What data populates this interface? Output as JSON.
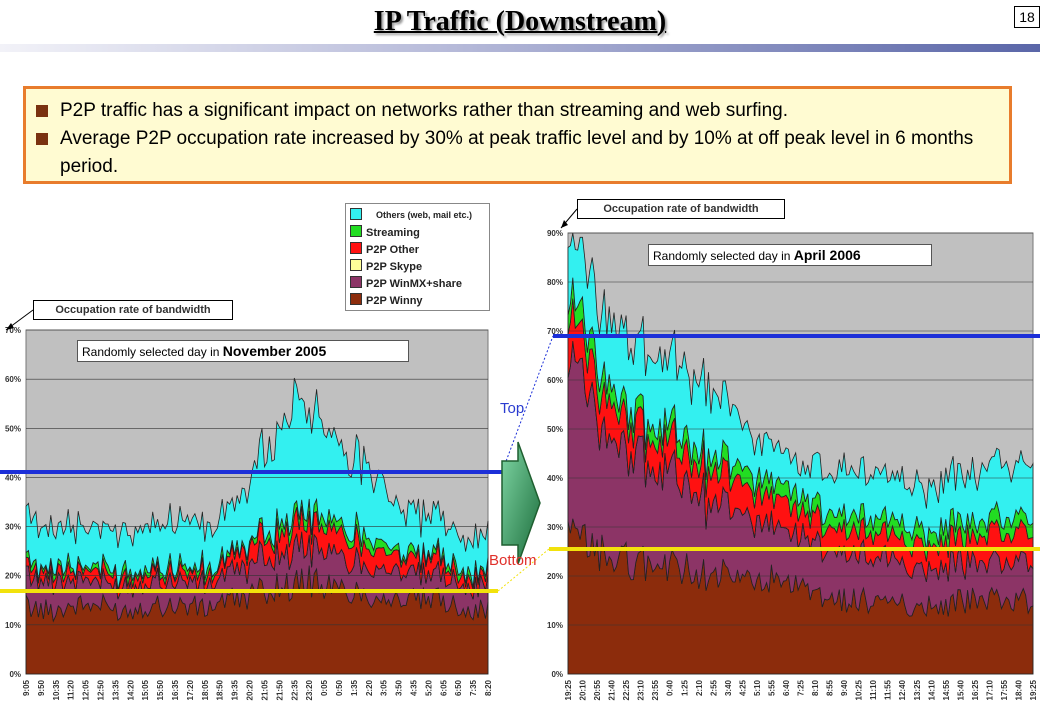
{
  "page": {
    "number": "18",
    "title": "IP Traffic (Downstream)"
  },
  "bullets": [
    "P2P traffic has a significant impact on networks rather than streaming and web surfing.",
    "Average P2P occupation rate increased by 30% at peak traffic level and by 10% at off peak level in 6 months period."
  ],
  "callouts": {
    "left": "Occupation rate of bandwidth",
    "right": "Occupation rate of bandwidth"
  },
  "markers": {
    "top_label": "Top",
    "bottom_label": "Bottom",
    "top_color": "#1c2fd8",
    "bottom_color": "#f2e20c"
  },
  "legend": {
    "others_note": "Others (web, mail etc.)",
    "items": [
      {
        "label": "",
        "color": "#33f0f0"
      },
      {
        "label": "Streaming",
        "color": "#22dd22"
      },
      {
        "label": "P2P Other",
        "color": "#ff1111"
      },
      {
        "label": "P2P Skype",
        "color": "#ffff99"
      },
      {
        "label": "P2P WinMX+share",
        "color": "#8c3466"
      },
      {
        "label": "P2P Winny",
        "color": "#8c2c0c"
      }
    ]
  },
  "chart_data": [
    {
      "type": "area",
      "stacked": true,
      "period_prefix": "Randomly selected day in ",
      "period": "November 2005",
      "ylim": [
        0,
        70
      ],
      "yticks": [
        "0%",
        "10%",
        "20%",
        "30%",
        "40%",
        "50%",
        "60%",
        "70%"
      ],
      "x": [
        "9:05",
        "9:50",
        "10:35",
        "11:20",
        "12:05",
        "12:50",
        "13:35",
        "14:20",
        "15:05",
        "15:50",
        "16:35",
        "17:20",
        "18:05",
        "18:50",
        "19:35",
        "20:20",
        "21:05",
        "21:50",
        "22:35",
        "23:20",
        "0:05",
        "0:50",
        "1:35",
        "2:20",
        "3:05",
        "3:50",
        "4:35",
        "5:20",
        "6:05",
        "6:50",
        "7:35",
        "8:20"
      ],
      "series": [
        {
          "name": "P2P Winny",
          "color": "#8c2c0c",
          "values": [
            14,
            13,
            13,
            14,
            14,
            14,
            13,
            13,
            14,
            14,
            14,
            14,
            13,
            15,
            15,
            16,
            17,
            18,
            18,
            19,
            18,
            17,
            17,
            16,
            16,
            15,
            15,
            15,
            15,
            14,
            13,
            13
          ]
        },
        {
          "name": "P2P WinMX+share",
          "color": "#8c3466",
          "values": [
            7,
            6,
            6,
            5,
            5,
            5,
            5,
            5,
            5,
            5,
            5,
            5,
            5,
            5,
            6,
            6,
            7,
            7,
            7,
            7,
            7,
            7,
            6,
            6,
            6,
            6,
            5,
            5,
            5,
            5,
            5,
            5
          ]
        },
        {
          "name": "P2P Skype",
          "color": "#ffff99",
          "values": [
            0,
            0,
            0,
            0,
            0,
            0,
            0,
            0,
            0,
            0,
            0,
            0,
            0,
            0,
            0,
            0,
            0,
            0,
            0,
            0,
            0,
            0,
            0,
            0,
            0,
            0,
            0,
            0,
            0,
            0,
            0,
            0
          ]
        },
        {
          "name": "P2P Other",
          "color": "#ff1111",
          "values": [
            2,
            2,
            2,
            2,
            2,
            2,
            2,
            2,
            2,
            2,
            2,
            2,
            2,
            2,
            3,
            4,
            4,
            4,
            5,
            5,
            5,
            5,
            4,
            4,
            4,
            3,
            3,
            3,
            3,
            2,
            2,
            2
          ]
        },
        {
          "name": "Streaming",
          "color": "#22dd22",
          "values": [
            1,
            1,
            1,
            1,
            1,
            1,
            1,
            1,
            1,
            1,
            1,
            1,
            1,
            1,
            1,
            1,
            1,
            2,
            2,
            2,
            2,
            2,
            2,
            2,
            2,
            1,
            1,
            1,
            1,
            1,
            1,
            1
          ]
        },
        {
          "name": "Others (web, mail etc.)",
          "color": "#33f0f0",
          "values": [
            9,
            8,
            8,
            8,
            8,
            8,
            8,
            8,
            9,
            9,
            9,
            10,
            8,
            10,
            10,
            12,
            18,
            20,
            22,
            21,
            18,
            16,
            15,
            15,
            12,
            9,
            8,
            8,
            8,
            7,
            7,
            7
          ]
        }
      ]
    },
    {
      "type": "area",
      "stacked": true,
      "period_prefix": "Randomly selected day in ",
      "period": "April 2006",
      "ylim": [
        0,
        90
      ],
      "yticks": [
        "0%",
        "10%",
        "20%",
        "30%",
        "40%",
        "50%",
        "60%",
        "70%",
        "80%",
        "90%"
      ],
      "x": [
        "19:25",
        "20:10",
        "20:55",
        "21:40",
        "22:25",
        "23:10",
        "23:55",
        "0:40",
        "1:25",
        "2:10",
        "2:55",
        "3:40",
        "4:25",
        "5:10",
        "5:55",
        "6:40",
        "7:25",
        "8:10",
        "8:55",
        "9:40",
        "10:25",
        "11:10",
        "11:55",
        "12:40",
        "13:25",
        "14:10",
        "14:55",
        "15:40",
        "16:25",
        "17:10",
        "17:55",
        "18:40",
        "19:25"
      ],
      "series": [
        {
          "name": "P2P Winny",
          "color": "#8c2c0c",
          "values": [
            28,
            27,
            25,
            24,
            23,
            23,
            22,
            22,
            21,
            21,
            20,
            20,
            19,
            19,
            19,
            18,
            17,
            16,
            15,
            15,
            15,
            15,
            14,
            14,
            14,
            14,
            14,
            15,
            15,
            15,
            15,
            15,
            15
          ]
        },
        {
          "name": "P2P WinMX+share",
          "color": "#8c3466",
          "values": [
            33,
            32,
            28,
            24,
            23,
            21,
            19,
            19,
            17,
            16,
            14,
            14,
            13,
            12,
            12,
            10,
            10,
            10,
            10,
            10,
            10,
            9,
            9,
            9,
            8,
            8,
            8,
            8,
            8,
            8,
            8,
            8,
            8
          ]
        },
        {
          "name": "P2P Skype",
          "color": "#ffff99",
          "values": [
            0,
            0,
            0,
            0,
            0,
            0,
            0,
            0,
            0,
            0,
            0,
            0,
            0,
            0,
            0,
            0,
            0,
            0,
            0,
            0,
            0,
            0,
            0,
            0,
            0,
            0,
            0,
            0,
            0,
            0,
            0,
            0,
            0
          ]
        },
        {
          "name": "P2P Other",
          "color": "#ff1111",
          "values": [
            8,
            8,
            7,
            7,
            6,
            6,
            6,
            6,
            6,
            6,
            6,
            6,
            6,
            6,
            6,
            6,
            5,
            5,
            5,
            5,
            5,
            5,
            5,
            5,
            5,
            5,
            5,
            5,
            5,
            6,
            6,
            6,
            6
          ]
        },
        {
          "name": "Streaming",
          "color": "#22dd22",
          "values": [
            4,
            4,
            4,
            3,
            3,
            3,
            3,
            3,
            3,
            3,
            3,
            3,
            3,
            3,
            3,
            3,
            3,
            3,
            3,
            3,
            3,
            3,
            3,
            3,
            3,
            3,
            3,
            3,
            3,
            3,
            3,
            3,
            3
          ]
        },
        {
          "name": "Others (web, mail etc.)",
          "color": "#33f0f0",
          "values": [
            12,
            13,
            13,
            14,
            14,
            14,
            14,
            14,
            14,
            14,
            13,
            12,
            9,
            8,
            8,
            7,
            6,
            8,
            8,
            9,
            8,
            9,
            9,
            9,
            9,
            10,
            10,
            10,
            10,
            11,
            11,
            11,
            11
          ]
        }
      ]
    }
  ]
}
